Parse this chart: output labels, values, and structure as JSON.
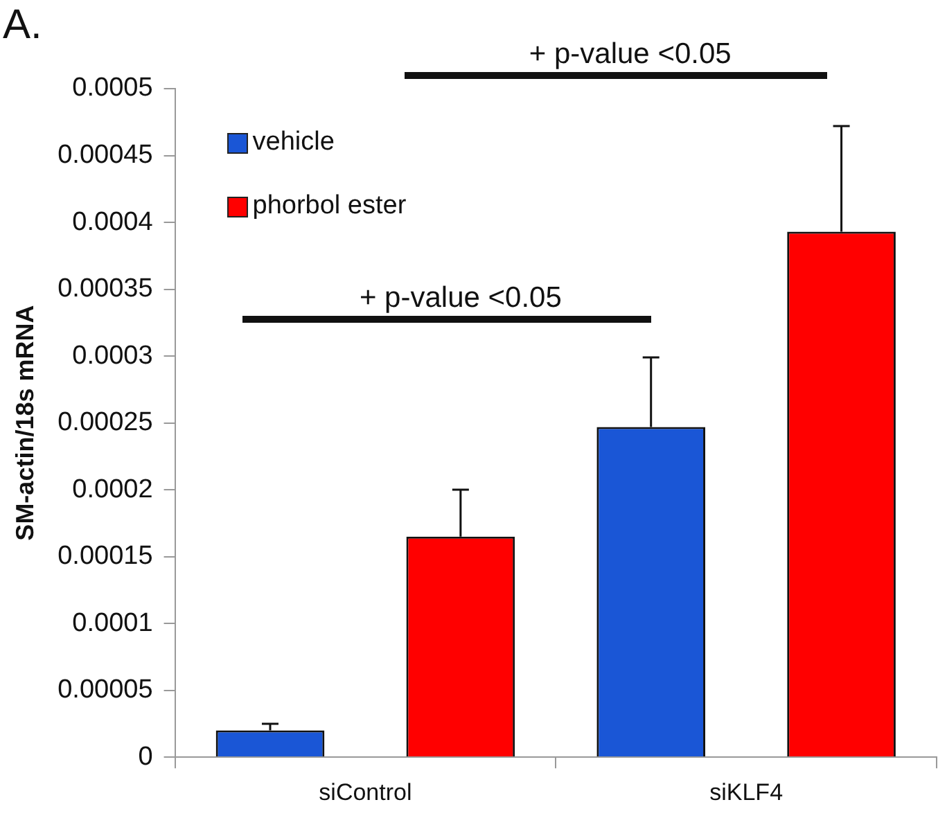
{
  "chart_data": {
    "type": "bar",
    "title": "A.",
    "ylabel": "SM-actin/18s mRNA",
    "categories": [
      "siControl",
      "siKLF4"
    ],
    "series": [
      {
        "name": "vehicle",
        "color": "#1a56d6",
        "values": [
          2e-05,
          0.000247
        ],
        "errors": [
          [
            2e-05,
            2.5e-05
          ],
          [
            0.000247,
            0.000299
          ]
        ]
      },
      {
        "name": "phorbol ester",
        "color": "#ff0000",
        "values": [
          0.000165,
          0.000393
        ],
        "errors": [
          [
            0.000165,
            0.0002
          ],
          [
            0.000393,
            0.000472
          ]
        ]
      }
    ],
    "ylim": [
      0,
      0.0005
    ],
    "yticks": [
      0,
      {
        "value": 5e-05,
        "label": "0.00005"
      },
      0.0001,
      0.00015,
      0.0002,
      0.00025,
      0.0003,
      0.00035,
      0.0004,
      0.00045,
      0.0005
    ],
    "annotations": [
      "+ p-value <0.05",
      "+ p-value <0.05"
    ],
    "grid": false,
    "legend": "top left"
  }
}
